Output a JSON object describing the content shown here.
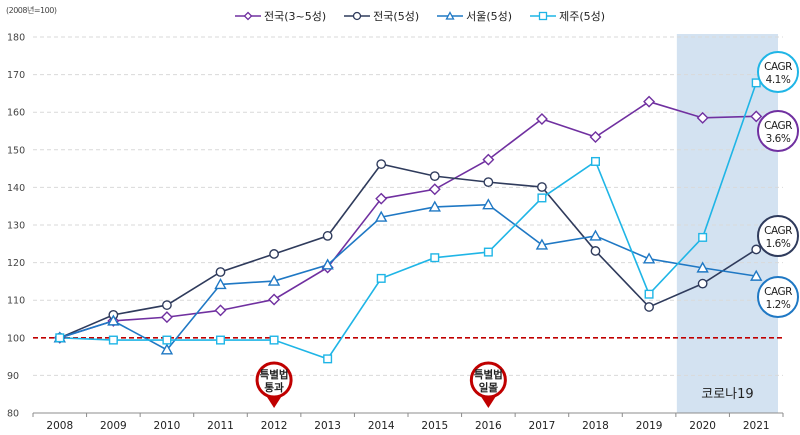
{
  "chart_data": {
    "type": "line",
    "title": "",
    "unit_label": "(2008년=100)",
    "xlabel": "",
    "ylabel": "",
    "x": [
      "2008",
      "2009",
      "2010",
      "2011",
      "2012",
      "2013",
      "2014",
      "2015",
      "2016",
      "2017",
      "2018",
      "2019",
      "2020",
      "2021"
    ],
    "ylim": [
      80,
      180
    ],
    "yticks": [
      80,
      90,
      100,
      110,
      120,
      130,
      140,
      150,
      160,
      170,
      180
    ],
    "grid": true,
    "legend_position": "top",
    "baseline": {
      "value": 100,
      "color": "#c00000",
      "style": "dashed"
    },
    "series": [
      {
        "name": "전국(3~5성)",
        "marker": "diamond",
        "color": "#7030a0",
        "values": [
          100,
          104.5,
          105.5,
          107.3,
          110.2,
          118.7,
          137.0,
          139.5,
          147.4,
          158.2,
          153.4,
          162.8,
          158.5,
          158.9
        ],
        "cagr_label": [
          "CAGR",
          "3.6%"
        ]
      },
      {
        "name": "전국(5성)",
        "marker": "circle",
        "color": "#2f3b5c",
        "values": [
          100,
          106.1,
          108.7,
          117.5,
          122.3,
          127.1,
          146.2,
          143.0,
          141.4,
          140.1,
          123.1,
          108.2,
          114.4,
          123.5
        ],
        "cagr_label": [
          "CAGR",
          "1.6%"
        ]
      },
      {
        "name": "서울(5성)",
        "marker": "triangle",
        "color": "#1f78c4",
        "values": [
          100,
          104.5,
          96.8,
          114.2,
          115.1,
          119.4,
          132.1,
          134.8,
          135.4,
          124.7,
          127.1,
          121.0,
          118.6,
          116.4
        ],
        "cagr_label": [
          "CAGR",
          "1.2%"
        ]
      },
      {
        "name": "제주(5성)",
        "marker": "square",
        "color": "#1fb5e6",
        "values": [
          100,
          99.4,
          99.4,
          99.4,
          99.4,
          94.4,
          115.8,
          121.3,
          122.8,
          137.2,
          146.9,
          111.6,
          126.7,
          167.8
        ],
        "cagr_label": [
          "CAGR",
          "4.1%"
        ]
      }
    ],
    "annotations": [
      {
        "type": "pin",
        "x": "2012",
        "lines": [
          "특별법",
          "통과"
        ],
        "color": "#c00000"
      },
      {
        "type": "pin",
        "x": "2016",
        "lines": [
          "특별법",
          "일몰"
        ],
        "color": "#c00000"
      },
      {
        "type": "shaded-region",
        "x_start": "2020",
        "x_end": "2021",
        "label": "코로나19",
        "color": "#d3e2f1"
      }
    ]
  }
}
